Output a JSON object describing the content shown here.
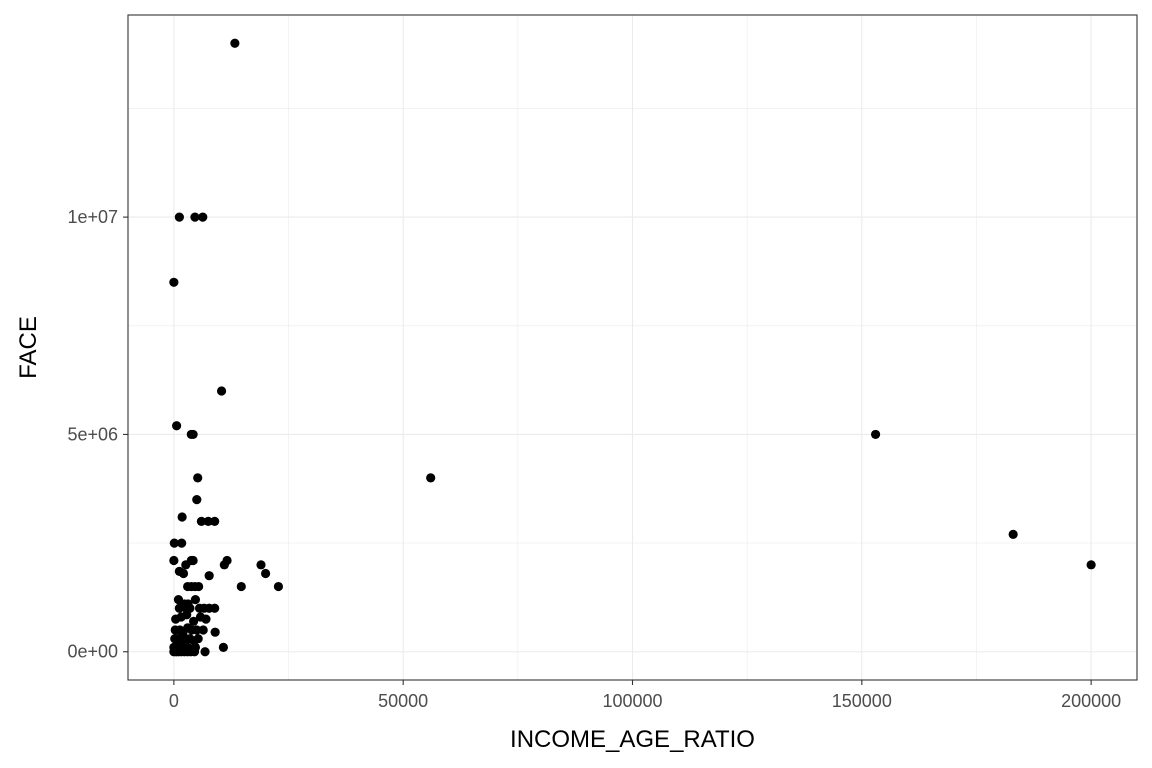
{
  "chart_data": {
    "type": "scatter",
    "xlabel": "INCOME_AGE_RATIO",
    "ylabel": "FACE",
    "xlim": [
      -10000,
      210000
    ],
    "ylim": [
      -650000,
      14650000
    ],
    "x_ticks": [
      {
        "value": 0,
        "label": "0"
      },
      {
        "value": 50000,
        "label": "50000"
      },
      {
        "value": 100000,
        "label": "100000"
      },
      {
        "value": 150000,
        "label": "150000"
      },
      {
        "value": 200000,
        "label": "200000"
      }
    ],
    "y_ticks": [
      {
        "value": 0,
        "label": "0e+00"
      },
      {
        "value": 5000000,
        "label": "5e+06"
      },
      {
        "value": 10000000,
        "label": "1e+07"
      }
    ],
    "grid": true,
    "series": [
      {
        "points": [
          [
            13300,
            14000000
          ],
          [
            1200,
            10000000
          ],
          [
            4600,
            10000000
          ],
          [
            6300,
            10000000
          ],
          [
            0,
            8500000
          ],
          [
            10400,
            6000000
          ],
          [
            600,
            5200000
          ],
          [
            3800,
            5000000
          ],
          [
            4200,
            5000000
          ],
          [
            56000,
            4000000
          ],
          [
            153000,
            5000000
          ],
          [
            183000,
            2700000
          ],
          [
            200000,
            2000000
          ],
          [
            5200,
            4000000
          ],
          [
            5000,
            3500000
          ],
          [
            1800,
            3100000
          ],
          [
            6000,
            3000000
          ],
          [
            7500,
            3000000
          ],
          [
            8900,
            3000000
          ],
          [
            100,
            2500000
          ],
          [
            1700,
            2500000
          ],
          [
            0,
            2100000
          ],
          [
            3800,
            2100000
          ],
          [
            2600,
            2000000
          ],
          [
            4200,
            2100000
          ],
          [
            11000,
            2000000
          ],
          [
            11600,
            2100000
          ],
          [
            19000,
            2000000
          ],
          [
            20000,
            1800000
          ],
          [
            1200,
            1850000
          ],
          [
            2100,
            1800000
          ],
          [
            7700,
            1750000
          ],
          [
            14700,
            1500000
          ],
          [
            22800,
            1500000
          ],
          [
            3000,
            1500000
          ],
          [
            3800,
            1500000
          ],
          [
            4600,
            1500000
          ],
          [
            5400,
            1500000
          ],
          [
            1000,
            1200000
          ],
          [
            2300,
            1100000
          ],
          [
            3100,
            1100000
          ],
          [
            4700,
            1200000
          ],
          [
            1200,
            1000000
          ],
          [
            2700,
            1000000
          ],
          [
            3500,
            1000000
          ],
          [
            5600,
            1000000
          ],
          [
            6600,
            1000000
          ],
          [
            7700,
            1000000
          ],
          [
            8900,
            1000000
          ],
          [
            400,
            750000
          ],
          [
            1600,
            800000
          ],
          [
            2800,
            850000
          ],
          [
            4300,
            700000
          ],
          [
            5800,
            800000
          ],
          [
            7000,
            750000
          ],
          [
            300,
            500000
          ],
          [
            1300,
            500000
          ],
          [
            2000,
            450000
          ],
          [
            3000,
            550000
          ],
          [
            3900,
            500000
          ],
          [
            5000,
            500000
          ],
          [
            6400,
            500000
          ],
          [
            9000,
            450000
          ],
          [
            200,
            300000
          ],
          [
            800,
            300000
          ],
          [
            1700,
            250000
          ],
          [
            2600,
            300000
          ],
          [
            3500,
            300000
          ],
          [
            4400,
            250000
          ],
          [
            5300,
            300000
          ],
          [
            0,
            100000
          ],
          [
            600,
            100000
          ],
          [
            1200,
            150000
          ],
          [
            2100,
            100000
          ],
          [
            3000,
            100000
          ],
          [
            3800,
            50000
          ],
          [
            4700,
            100000
          ],
          [
            10800,
            100000
          ],
          [
            0,
            0
          ],
          [
            500,
            0
          ],
          [
            1000,
            0
          ],
          [
            1600,
            0
          ],
          [
            2300,
            0
          ],
          [
            3000,
            0
          ],
          [
            3700,
            0
          ],
          [
            4500,
            0
          ],
          [
            6800,
            0
          ]
        ]
      }
    ]
  }
}
